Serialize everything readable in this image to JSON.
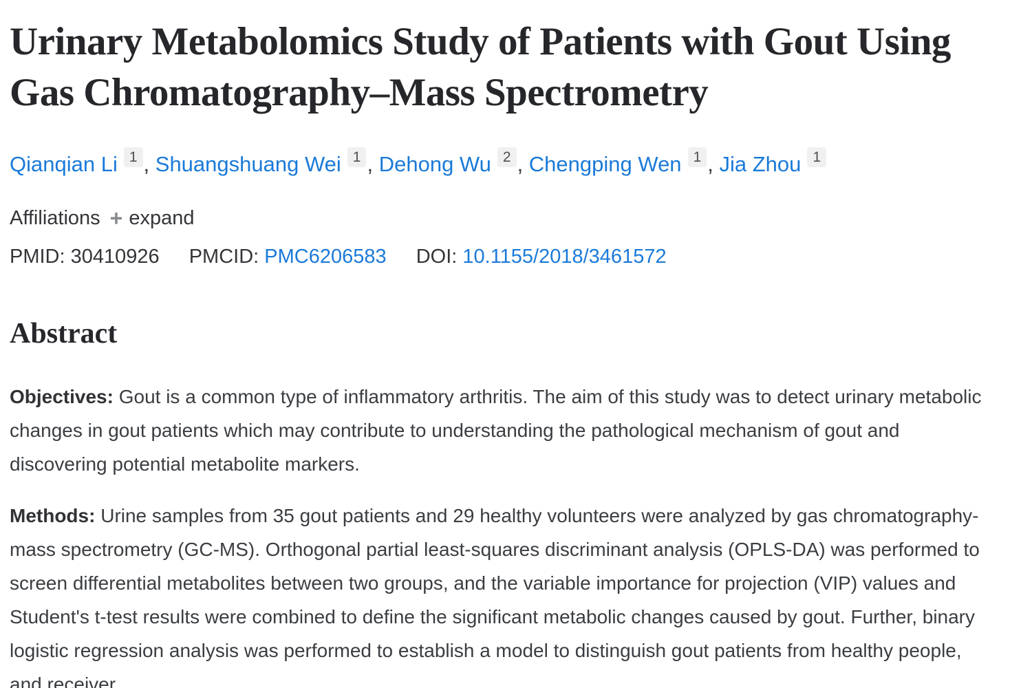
{
  "article": {
    "title": "Urinary Metabolomics Study of Patients with Gout Using Gas Chromatography–Mass Spectrometry",
    "authors": [
      {
        "name": "Qianqian Li",
        "affiliation": "1"
      },
      {
        "name": "Shuangshuang Wei",
        "affiliation": "1"
      },
      {
        "name": "Dehong Wu",
        "affiliation": "2"
      },
      {
        "name": "Chengping Wen",
        "affiliation": "1"
      },
      {
        "name": "Jia Zhou",
        "affiliation": "1"
      }
    ],
    "authors_separator": ", ",
    "affiliations": {
      "label": "Affiliations",
      "plus_icon": "+",
      "expand_label": "expand"
    },
    "identifiers": {
      "pmid_label": "PMID:",
      "pmid": "30410926",
      "pmcid_label": "PMCID:",
      "pmcid": "PMC6206583",
      "doi_label": "DOI:",
      "doi": "10.1155/2018/3461572"
    },
    "abstract": {
      "heading": "Abstract",
      "sections": [
        {
          "label": "Objectives:",
          "text": "Gout is a common type of inflammatory arthritis. The aim of this study was to detect urinary metabolic changes in gout patients which may contribute to understanding the pathological mechanism of gout and discovering potential metabolite markers."
        },
        {
          "label": "Methods:",
          "text": "Urine samples from 35 gout patients and 29 healthy volunteers were analyzed by gas chromatography-mass spectrometry (GC-MS). Orthogonal partial least-squares discriminant analysis (OPLS-DA) was performed to screen differential metabolites between two groups, and the variable importance for projection (VIP) values and Student's t-test results were combined to define the significant metabolic changes caused by gout. Further, binary logistic regression analysis was performed to establish a model to distinguish gout patients from healthy people, and receiver"
        }
      ]
    }
  },
  "colors": {
    "link_blue": "#1a7ad9",
    "body_text": "#3a3d41",
    "heading_text": "#26272b",
    "superscript_background": "#f0f0f1",
    "superscript_text": "#4d4f52",
    "plus_icon_gray": "#87898c",
    "page_background": "#ffffff"
  }
}
